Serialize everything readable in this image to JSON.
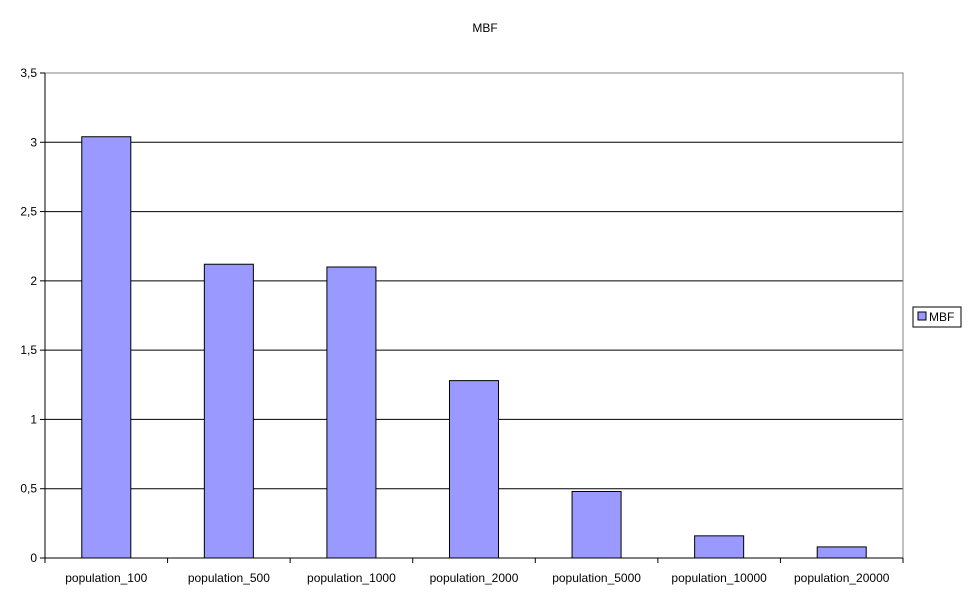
{
  "chart_data": {
    "type": "bar",
    "title": "MBF",
    "xlabel": "",
    "ylabel": "",
    "categories": [
      "population_100",
      "population_500",
      "population_1000",
      "population_2000",
      "population_5000",
      "population_10000",
      "population_20000"
    ],
    "series": [
      {
        "name": "MBF",
        "values": [
          3.04,
          2.12,
          2.1,
          1.28,
          0.48,
          0.16,
          0.08
        ]
      }
    ],
    "ylim": [
      0,
      3.5
    ],
    "yticks": [
      "0",
      "0,5",
      "1",
      "1,5",
      "2",
      "2,5",
      "3",
      "3,5"
    ],
    "grid": true,
    "legend": "right",
    "colors": {
      "bar_fill": "#9999ff",
      "bar_stroke": "#000000",
      "gridline": "#000000",
      "plot_border": "#808080",
      "axis": "#000000"
    }
  }
}
